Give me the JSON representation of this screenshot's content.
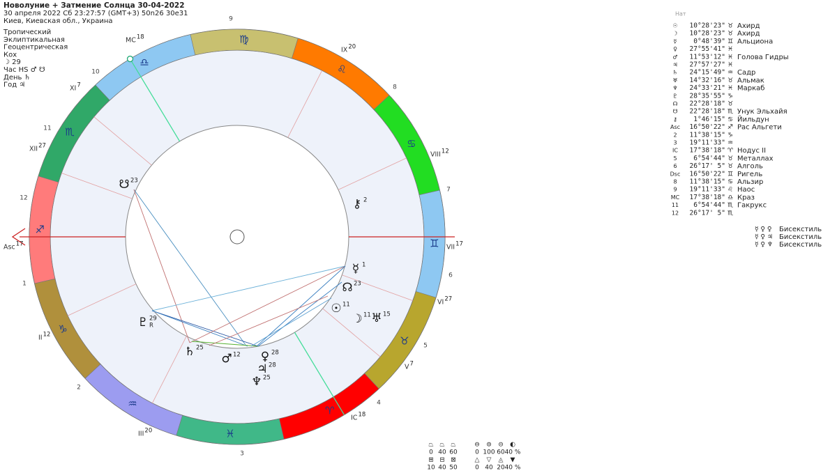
{
  "header": {
    "title": "Новолуние + Затмение Солнца 30-04-2022",
    "date": "30 апреля 2022  Сб  23:27:57 (GMT+3) 50n26  30e31",
    "place": "Киев, Киевская обл., Украина"
  },
  "settings": [
    "Тропический",
    "Эклиптикальная",
    "Геоцентрическая",
    "Кох",
    "☽ 29",
    "Час HS ♂ ☋",
    "День ♄",
    "Год ♃"
  ],
  "wheel": {
    "signs": [
      {
        "glyph": "♈",
        "color": "#ff0000"
      },
      {
        "glyph": "♉",
        "color": "#b8a62e"
      },
      {
        "glyph": "♊",
        "color": "#8ec8f2"
      },
      {
        "glyph": "♋",
        "color": "#22dd22"
      },
      {
        "glyph": "♌",
        "color": "#ff7a00"
      },
      {
        "glyph": "♍",
        "color": "#c8c070"
      },
      {
        "glyph": "♎",
        "color": "#8ec8f2"
      },
      {
        "glyph": "♏",
        "color": "#30a868"
      },
      {
        "glyph": "♐",
        "color": "#ff7b7b"
      },
      {
        "glyph": "♑",
        "color": "#b0903c"
      },
      {
        "glyph": "♒",
        "color": "#9c9cf0"
      },
      {
        "glyph": "♓",
        "color": "#40b888"
      }
    ],
    "house_numbers": [
      "1",
      "2",
      "3",
      "4",
      "5",
      "6",
      "7",
      "8",
      "9",
      "10",
      "11",
      "12"
    ],
    "cusps": [
      {
        "label": "Asc",
        "degree": 17
      },
      {
        "label": "II",
        "degree": 12
      },
      {
        "label": "III",
        "degree": 20
      },
      {
        "label": "IC",
        "degree": 18
      },
      {
        "label": "V",
        "degree": 7
      },
      {
        "label": "VI",
        "degree": 27
      },
      {
        "label": "VII",
        "degree": 17
      },
      {
        "label": "VIII",
        "degree": 12
      },
      {
        "label": "IX",
        "degree": 20
      },
      {
        "label": "MC",
        "degree": 18
      },
      {
        "label": "XI",
        "degree": 7
      },
      {
        "label": "XII",
        "degree": 27
      }
    ],
    "planets": [
      {
        "glyph": "☋",
        "degree": 23
      },
      {
        "glyph": "⚷",
        "degree": 2
      },
      {
        "glyph": "☿",
        "degree": 1
      },
      {
        "glyph": "☊",
        "degree": 23
      },
      {
        "glyph": "☉",
        "degree": 11
      },
      {
        "glyph": "☽",
        "degree": 11
      },
      {
        "glyph": "♅",
        "degree": 15
      },
      {
        "glyph": "♇",
        "degree": 29,
        "retro": "R"
      },
      {
        "glyph": "♄",
        "degree": 25
      },
      {
        "glyph": "♂",
        "degree": 12
      },
      {
        "glyph": "♀",
        "degree": 28
      },
      {
        "glyph": "♃",
        "degree": 28
      },
      {
        "glyph": "♆",
        "degree": 25
      }
    ]
  },
  "positions": {
    "header": "Нат",
    "rows": [
      {
        "glyph": "☉",
        "position": "10°28'23\"",
        "sign": "♉",
        "star": "Ахирд"
      },
      {
        "glyph": "☽",
        "position": "10°28'23\"",
        "sign": "♉",
        "star": "Ахирд"
      },
      {
        "glyph": "☿",
        "position": "0°48'39\"",
        "sign": "♊",
        "star": "Альциона"
      },
      {
        "glyph": "♀",
        "position": "27°55'41\"",
        "sign": "♓"
      },
      {
        "glyph": "♂",
        "position": "11°53'12\"",
        "sign": "♓",
        "star": "Голова Гидры"
      },
      {
        "glyph": "♃",
        "position": "27°57'27\"",
        "sign": "♓"
      },
      {
        "glyph": "♄",
        "position": "24°15'49\"",
        "sign": "♒",
        "star": "Садр"
      },
      {
        "glyph": "♅",
        "position": "14°32'16\"",
        "sign": "♉",
        "star": "Альмак"
      },
      {
        "glyph": "♆",
        "position": "24°33'21\"",
        "sign": "♓",
        "star": "Маркаб"
      },
      {
        "glyph": "♇",
        "position": "28°35'55\"",
        "sign": "♑"
      },
      {
        "glyph": "☊",
        "position": "22°28'18\"",
        "sign": "♉"
      },
      {
        "glyph": "☋",
        "position": "22°28'18\"",
        "sign": "♏",
        "star": "Унук Эльхайя"
      },
      {
        "glyph": "⚷",
        "position": "1°46'15\"",
        "sign": "♋",
        "star": "Йильдун"
      },
      {
        "glyph": "Asc",
        "position": "16°50'22\"",
        "sign": "♐",
        "star": "Рас Альгети"
      },
      {
        "glyph": "2",
        "position": "11°38'15\"",
        "sign": "♑"
      },
      {
        "glyph": "3",
        "position": "19°11'33\"",
        "sign": "♒"
      },
      {
        "glyph": "IC",
        "position": "17°38'18\"",
        "sign": "♈",
        "star": "Нодус II"
      },
      {
        "glyph": "5",
        "position": "6°54'44\"",
        "sign": "♉",
        "star": "Металлах"
      },
      {
        "glyph": "6",
        "position": "26°17' 5\"",
        "sign": "♉",
        "star": "Алголь"
      },
      {
        "glyph": "Dsc",
        "position": "16°50'22\"",
        "sign": "♊",
        "star": "Ригель"
      },
      {
        "glyph": "8",
        "position": "11°38'15\"",
        "sign": "♋",
        "star": "Альзир"
      },
      {
        "glyph": "9",
        "position": "19°11'33\"",
        "sign": "♌",
        "star": "Наос"
      },
      {
        "glyph": "MC",
        "position": "17°38'18\"",
        "sign": "♎",
        "star": "Краз"
      },
      {
        "glyph": "11",
        "position": "6°54'44\"",
        "sign": "♏",
        "star": "Гакрукс"
      },
      {
        "glyph": "12",
        "position": "26°17' 5\"",
        "sign": "♏"
      }
    ]
  },
  "patterns": [
    {
      "glyphs": "☿ ♀ ♀",
      "name": "Бисекстиль"
    },
    {
      "glyphs": "☿ ♀ ♃",
      "name": "Бисекстиль"
    },
    {
      "glyphs": "☿ ♀ ♆",
      "name": "Бисекстиль"
    }
  ],
  "stats": {
    "left": [
      [
        "⏢",
        "⏢",
        "⏢"
      ],
      [
        "0",
        "40",
        "60"
      ],
      [
        "⊞",
        "⊟",
        "⊠"
      ],
      [
        "10",
        "40",
        "50"
      ]
    ],
    "right": [
      [
        "⊖",
        "⊜",
        "⊝",
        "◐"
      ],
      [
        "0",
        "100",
        "60",
        "40 %"
      ],
      [
        "△",
        "▽",
        "◬",
        "▼"
      ],
      [
        "0",
        "40",
        "20",
        "40 %"
      ]
    ]
  }
}
